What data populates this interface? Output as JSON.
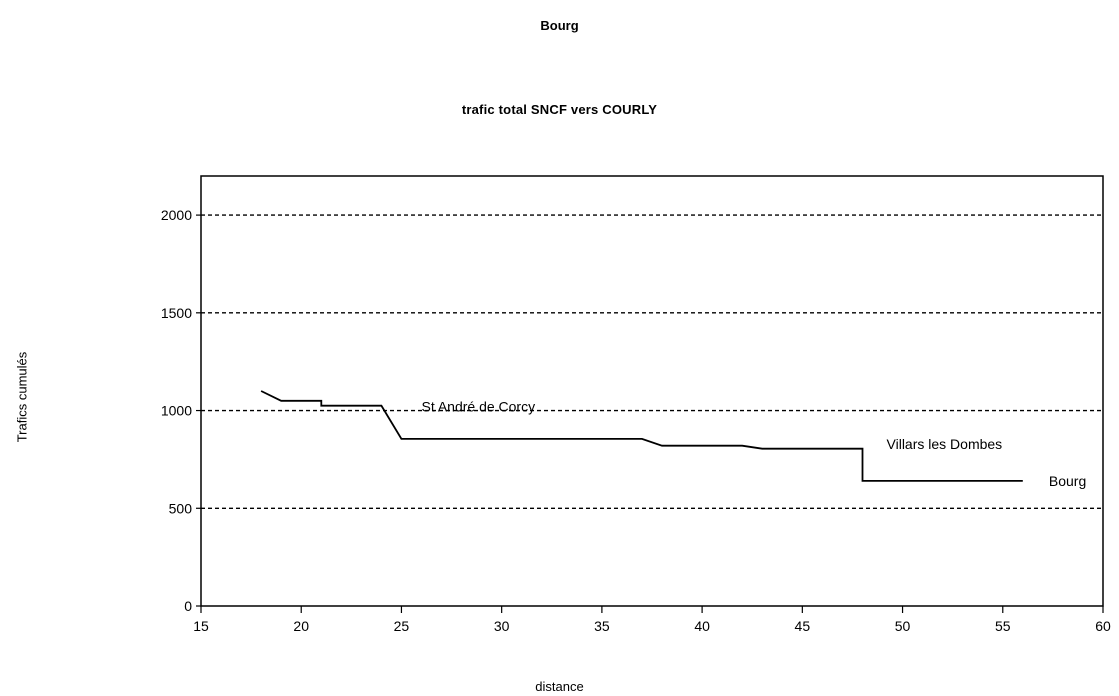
{
  "chart_data": {
    "type": "line",
    "supertitle": "Bourg",
    "title": "trafic total SNCF vers COURLY",
    "xlabel": "distance",
    "ylabel": "Trafics cumulés",
    "xlim": [
      15,
      60
    ],
    "ylim": [
      0,
      2200
    ],
    "xticks": [
      15,
      20,
      25,
      30,
      35,
      40,
      45,
      50,
      55,
      60
    ],
    "yticks": [
      0,
      500,
      1000,
      1500,
      2000
    ],
    "grid": {
      "horizontal_dashed": [
        500,
        1000,
        1500,
        2000
      ]
    },
    "series": [
      {
        "x": [
          18,
          19,
          21,
          21,
          24,
          25,
          37,
          38,
          42,
          43,
          48,
          48,
          56
        ],
        "y": [
          1100,
          1050,
          1050,
          1025,
          1025,
          855,
          855,
          820,
          820,
          805,
          805,
          640,
          640
        ]
      }
    ],
    "annotations": [
      {
        "text": "St André de Corcy",
        "x": 26,
        "y": 1020
      },
      {
        "text": "Villars les Dombes",
        "x": 49.2,
        "y": 830
      },
      {
        "text": "Bourg",
        "x": 57.3,
        "y": 640
      }
    ],
    "colors": {
      "line": "#000000",
      "grid": "#000000",
      "background": "#ffffff"
    }
  }
}
